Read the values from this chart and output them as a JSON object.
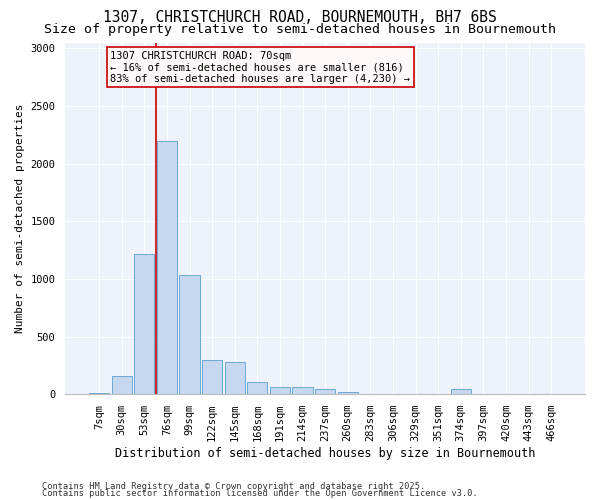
{
  "title": "1307, CHRISTCHURCH ROAD, BOURNEMOUTH, BH7 6BS",
  "subtitle": "Size of property relative to semi-detached houses in Bournemouth",
  "xlabel": "Distribution of semi-detached houses by size in Bournemouth",
  "ylabel": "Number of semi-detached properties",
  "categories": [
    "7sqm",
    "30sqm",
    "53sqm",
    "76sqm",
    "99sqm",
    "122sqm",
    "145sqm",
    "168sqm",
    "191sqm",
    "214sqm",
    "237sqm",
    "260sqm",
    "283sqm",
    "306sqm",
    "329sqm",
    "351sqm",
    "374sqm",
    "397sqm",
    "420sqm",
    "443sqm",
    "466sqm"
  ],
  "values": [
    10,
    155,
    1220,
    2200,
    1035,
    295,
    280,
    105,
    65,
    60,
    45,
    20,
    0,
    0,
    0,
    0,
    45,
    0,
    0,
    0,
    0
  ],
  "bar_color": "#c5d8f0",
  "bar_edge_color": "#6aaad4",
  "vline_color": "#cc0000",
  "vline_pos": 2.5,
  "annotation_text": "1307 CHRISTCHURCH ROAD: 70sqm\n← 16% of semi-detached houses are smaller (816)\n83% of semi-detached houses are larger (4,230) →",
  "annotation_box_facecolor": "#fff8f8",
  "annotation_box_edgecolor": "#cc0000",
  "footer1": "Contains HM Land Registry data © Crown copyright and database right 2025.",
  "footer2": "Contains public sector information licensed under the Open Government Licence v3.0.",
  "ylim": [
    0,
    3050
  ],
  "yticks": [
    0,
    500,
    1000,
    1500,
    2000,
    2500,
    3000
  ],
  "background_color": "#eef2fb",
  "title_fontsize": 10.5,
  "subtitle_fontsize": 9.5,
  "xlabel_fontsize": 8.5,
  "ylabel_fontsize": 8,
  "tick_fontsize": 7.5,
  "footer_fontsize": 6.2
}
